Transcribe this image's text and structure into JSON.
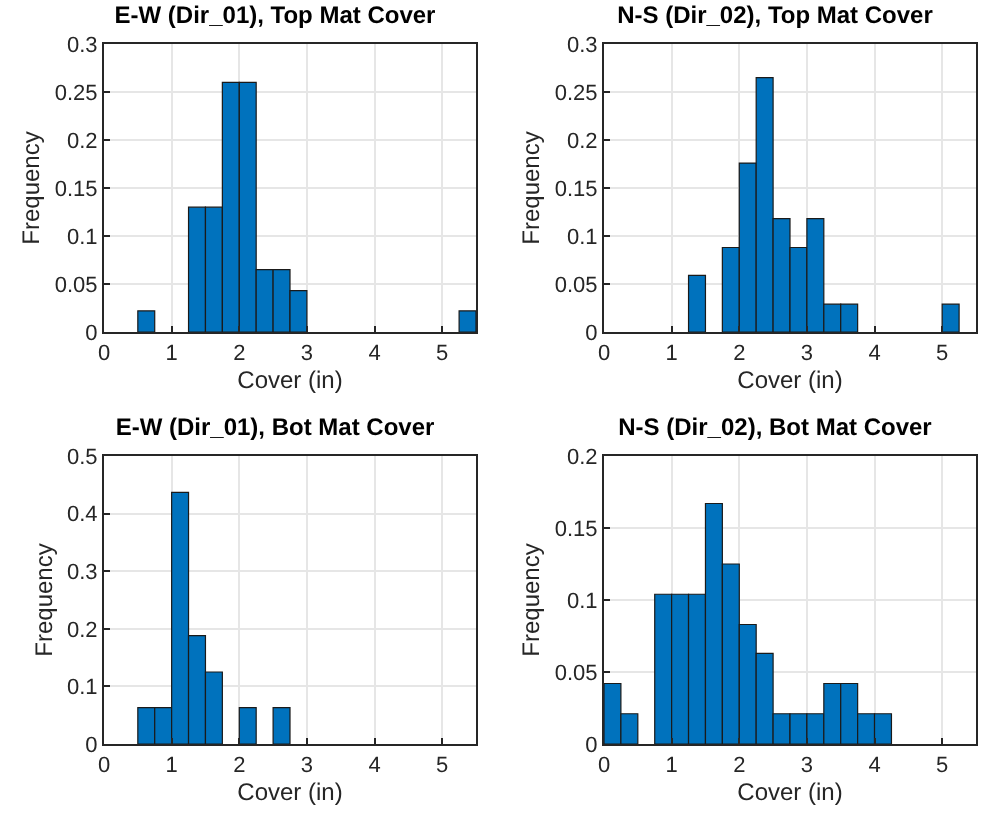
{
  "chart_data": [
    {
      "type": "histogram",
      "title": "E-W (Dir_01), Top Mat Cover",
      "xlabel": "Cover (in)",
      "ylabel": "Frequency",
      "color": "#0072bd",
      "bins": [
        0.5,
        0.75,
        1,
        1.25,
        1.5,
        1.75,
        2,
        2.25,
        2.5,
        2.75,
        3,
        3.25,
        3.5,
        3.75,
        4,
        4.25,
        4.5,
        4.75,
        5,
        5.25,
        5.5
      ],
      "values": [
        0.022,
        0,
        0,
        0.13,
        0.13,
        0.26,
        0.26,
        0.065,
        0.065,
        0.043,
        0,
        0,
        0,
        0,
        0,
        0,
        0,
        0,
        0,
        0.022
      ],
      "xlim": [
        0,
        5.5
      ],
      "xticks": [
        0,
        1,
        2,
        3,
        4,
        5
      ],
      "ylim": [
        0,
        0.3
      ],
      "yticks": [
        0,
        0.05,
        0.1,
        0.15,
        0.2,
        0.25,
        0.3
      ],
      "grid": true
    },
    {
      "type": "histogram",
      "title": "N-S (Dir_02), Top Mat Cover",
      "xlabel": "Cover (in)",
      "ylabel": "Frequency",
      "color": "#0072bd",
      "bins": [
        1.25,
        1.5,
        1.75,
        2,
        2.25,
        2.5,
        2.75,
        3,
        3.25,
        3.5,
        3.75,
        4,
        4.25,
        4.5,
        4.75,
        5,
        5.25
      ],
      "values": [
        0.059,
        0,
        0.088,
        0.176,
        0.265,
        0.118,
        0.088,
        0.118,
        0.029,
        0.029,
        0,
        0,
        0,
        0,
        0,
        0.029
      ],
      "xlim": [
        0,
        5.5
      ],
      "xticks": [
        0,
        1,
        2,
        3,
        4,
        5
      ],
      "ylim": [
        0,
        0.3
      ],
      "yticks": [
        0,
        0.05,
        0.1,
        0.15,
        0.2,
        0.25,
        0.3
      ],
      "grid": true
    },
    {
      "type": "histogram",
      "title": "E-W (Dir_01), Bot Mat Cover",
      "xlabel": "Cover (in)",
      "ylabel": "Frequency",
      "color": "#0072bd",
      "bins": [
        0.5,
        0.75,
        1,
        1.25,
        1.5,
        1.75,
        2,
        2.25,
        2.5,
        2.75
      ],
      "values": [
        0.063,
        0.063,
        0.437,
        0.188,
        0.125,
        0,
        0.063,
        0,
        0.063
      ],
      "xlim": [
        0,
        5.5
      ],
      "xticks": [
        0,
        1,
        2,
        3,
        4,
        5
      ],
      "ylim": [
        0,
        0.5
      ],
      "yticks": [
        0,
        0.1,
        0.2,
        0.3,
        0.4,
        0.5
      ],
      "grid": true
    },
    {
      "type": "histogram",
      "title": "N-S (Dir_02), Bot Mat Cover",
      "xlabel": "Cover (in)",
      "ylabel": "Frequency",
      "color": "#0072bd",
      "bins": [
        0,
        0.25,
        0.5,
        0.75,
        1,
        1.25,
        1.5,
        1.75,
        2,
        2.25,
        2.5,
        2.75,
        3,
        3.25,
        3.5,
        3.75,
        4,
        4.25
      ],
      "values": [
        0.042,
        0.021,
        0,
        0.104,
        0.104,
        0.104,
        0.167,
        0.125,
        0.083,
        0.063,
        0.021,
        0.021,
        0.021,
        0.042,
        0.042,
        0.021,
        0.021
      ],
      "xlim": [
        0,
        5.5
      ],
      "xticks": [
        0,
        1,
        2,
        3,
        4,
        5
      ],
      "ylim": [
        0,
        0.2
      ],
      "yticks": [
        0,
        0.05,
        0.1,
        0.15,
        0.2
      ],
      "grid": true
    }
  ]
}
